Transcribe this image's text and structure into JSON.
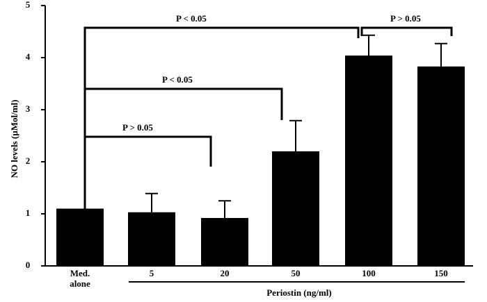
{
  "chart_data": {
    "type": "bar",
    "y_label": "NO levels  (µMol/ml)",
    "x_label": "Periostin (ng/ml)",
    "categories": [
      "Med. alone",
      "5",
      "20",
      "50",
      "100",
      "150"
    ],
    "values": [
      1.1,
      1.03,
      0.92,
      2.2,
      4.04,
      3.83
    ],
    "errors": [
      null,
      0.36,
      0.33,
      0.59,
      0.39,
      0.44
    ],
    "color": "#000000",
    "ylim": [
      0,
      5
    ],
    "yticks": [
      0,
      1,
      2,
      3,
      4,
      5
    ],
    "annotations": [
      {
        "label": "P < 0.05",
        "from": "Med. alone",
        "to": "100"
      },
      {
        "label": "P > 0.05",
        "from": "100",
        "to": "150"
      },
      {
        "label": "P < 0.05",
        "from": "Med. alone",
        "to": "50"
      },
      {
        "label": "P > 0.05",
        "from": "Med. alone",
        "to": "20"
      }
    ]
  }
}
